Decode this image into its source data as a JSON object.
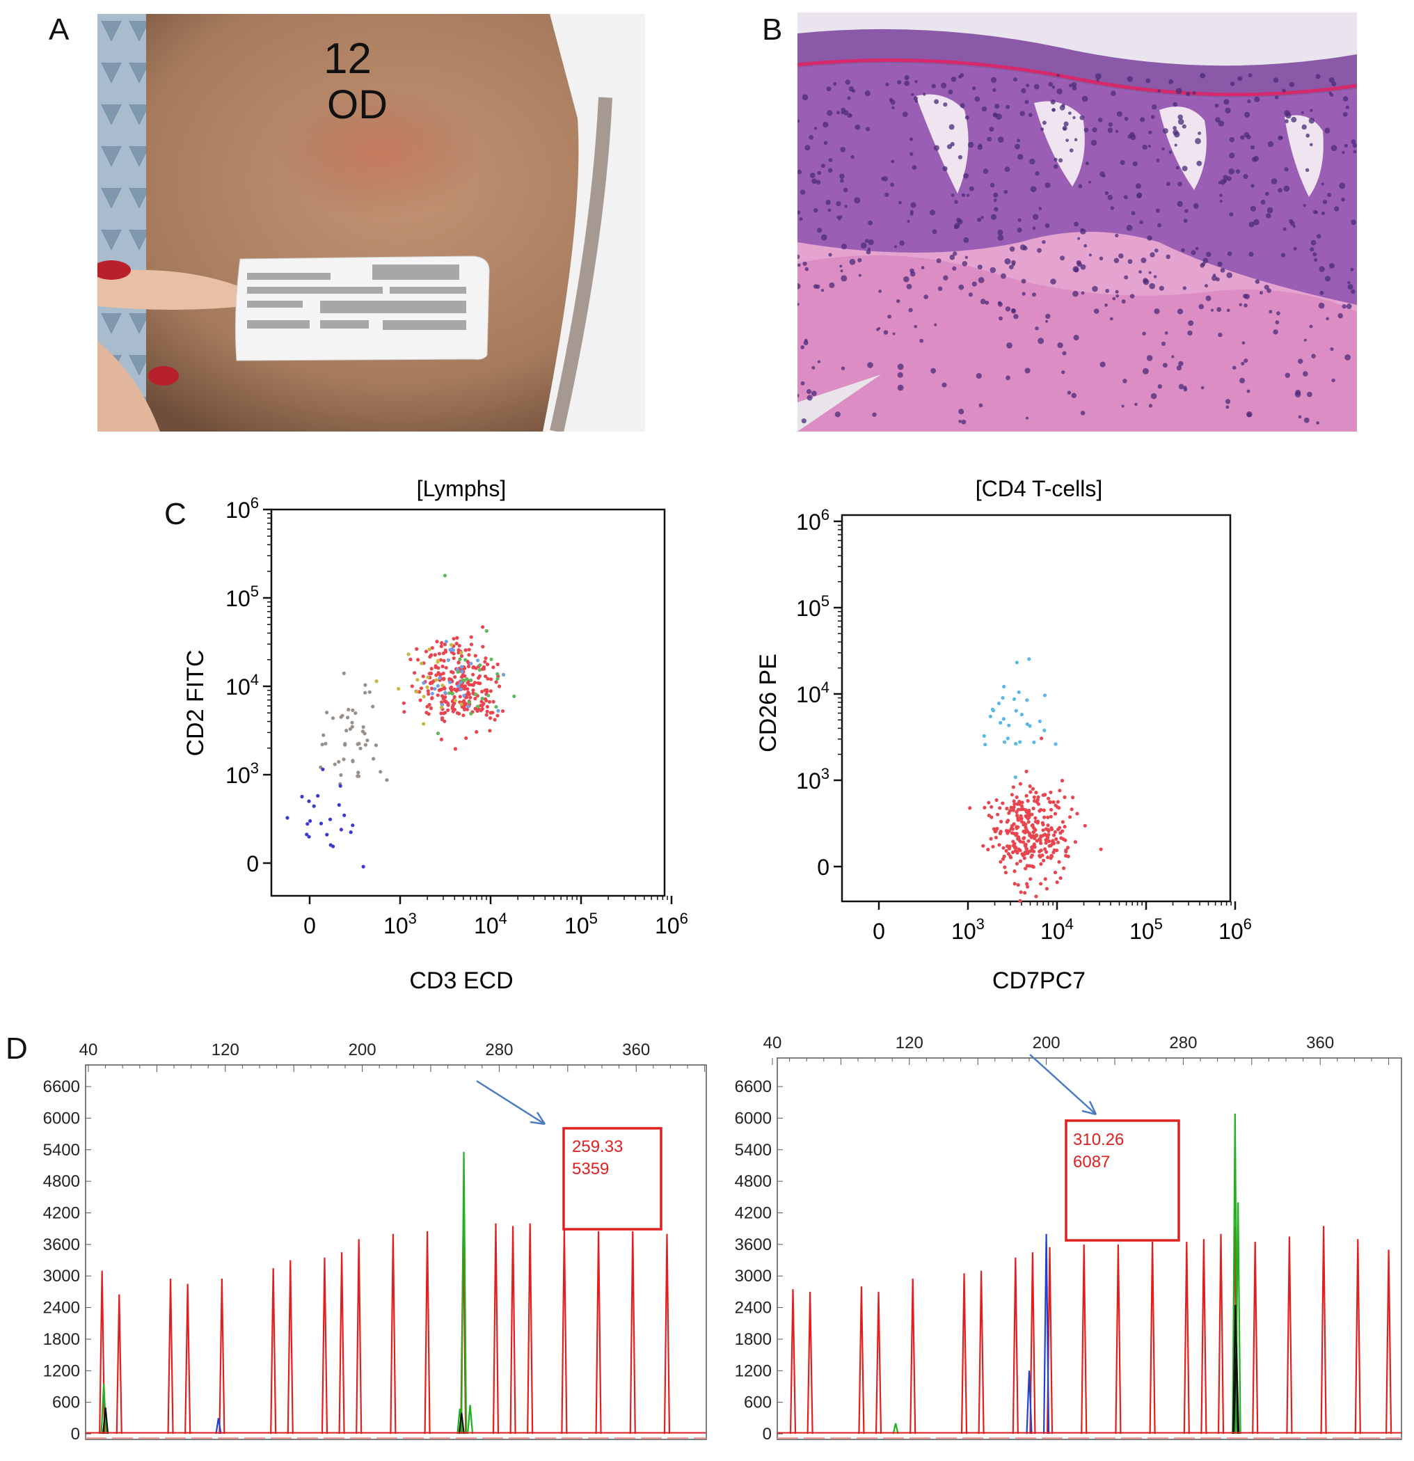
{
  "figure": {
    "panel_labels": [
      "A",
      "B",
      "C",
      "D"
    ],
    "photo_a": {
      "skin_marking_line1": "12",
      "skin_marking_line2": "OD",
      "colors": {
        "skin": "#b58a6a",
        "lesion": "#c07060",
        "gown": "#9fb3c6",
        "label": "#f2f2f2"
      }
    },
    "photo_b": {
      "colors": {
        "tissue": "#c58ac6",
        "nuclei": "#4b2b7a",
        "dermis": "#e6a6d0",
        "background": "#e8e4ea"
      }
    }
  },
  "chart_data": [
    {
      "type": "scatter",
      "title": "[Lymphs]",
      "xlabel": "CD3 ECD",
      "ylabel": "CD2 FITC",
      "x_ticks": [
        "0",
        "10^3",
        "10^4",
        "10^5",
        "10^6"
      ],
      "y_ticks": [
        "0",
        "10^3",
        "10^4",
        "10^5",
        "10^6"
      ],
      "scale": "biexponential",
      "clusters": [
        {
          "color": "#e8454f",
          "x_center": 4500,
          "y_center": 10000,
          "count": 260
        },
        {
          "color": "#6fa0e8",
          "x_center": 4500,
          "y_center": 14000,
          "count": 25
        },
        {
          "color": "#5fb85a",
          "x_center": 6000,
          "y_center": 9000,
          "count": 25
        },
        {
          "color": "#c8b840",
          "x_center": 2500,
          "y_center": 12000,
          "count": 20
        },
        {
          "color": "#9a8f88",
          "x_center": 500,
          "y_center": 3000,
          "count": 45
        },
        {
          "color": "#3a3ad0",
          "x_center": 250,
          "y_center": 600,
          "count": 22
        }
      ]
    },
    {
      "type": "scatter",
      "title": "[CD4 T-cells]",
      "xlabel": "CD7PC7",
      "ylabel": "CD26 PE",
      "x_ticks": [
        "0",
        "10^3",
        "10^4",
        "10^5",
        "10^6"
      ],
      "y_ticks": [
        "0",
        "10^3",
        "10^4",
        "10^5",
        "10^6"
      ],
      "scale": "biexponential",
      "clusters": [
        {
          "color": "#e8454f",
          "x_center": 5000,
          "y_center": 400,
          "count": 300
        },
        {
          "color": "#5ab8e8",
          "x_center": 3500,
          "y_center": 5000,
          "count": 30
        }
      ]
    },
    {
      "type": "line",
      "xlim": [
        40,
        400
      ],
      "ylim": [
        0,
        7000
      ],
      "x_ticks": [
        40,
        120,
        200,
        280,
        360
      ],
      "y_ticks": [
        0,
        600,
        1200,
        1800,
        2400,
        3000,
        3600,
        4200,
        4800,
        5400,
        6000,
        6600
      ],
      "annotation": {
        "line1": "259.33",
        "line2": "5359"
      },
      "series": [
        {
          "color": "#e02020",
          "peaks": [
            [
              48,
              3100
            ],
            [
              58,
              2650
            ],
            [
              88,
              2950
            ],
            [
              98,
              2850
            ],
            [
              118,
              2950
            ],
            [
              148,
              3150
            ],
            [
              158,
              3300
            ],
            [
              178,
              3350
            ],
            [
              188,
              3450
            ],
            [
              198,
              3700
            ],
            [
              218,
              3800
            ],
            [
              238,
              3850
            ],
            [
              259,
              3950
            ],
            [
              278,
              4000
            ],
            [
              288,
              3950
            ],
            [
              298,
              4000
            ],
            [
              318,
              3900
            ],
            [
              338,
              3850
            ],
            [
              358,
              3850
            ],
            [
              378,
              3800
            ]
          ]
        },
        {
          "color": "#20b020",
          "peaks": [
            [
              49,
              950
            ],
            [
              259.33,
              5359
            ],
            [
              257,
              480
            ],
            [
              263,
              550
            ]
          ]
        },
        {
          "color": "#2040d0",
          "peaks": [
            [
              116,
              300
            ]
          ]
        },
        {
          "color": "#111111",
          "peaks": [
            [
              50,
              500
            ],
            [
              258,
              400
            ]
          ]
        }
      ]
    },
    {
      "type": "line",
      "xlim": [
        40,
        400
      ],
      "ylim": [
        0,
        7000
      ],
      "x_ticks": [
        40,
        120,
        200,
        280,
        360
      ],
      "y_ticks": [
        0,
        600,
        1200,
        1800,
        2400,
        3000,
        3600,
        4200,
        4800,
        5400,
        6000,
        6600
      ],
      "annotation": {
        "line1": "310.26",
        "line2": "6087"
      },
      "series": [
        {
          "color": "#e02020",
          "peaks": [
            [
              52,
              2750
            ],
            [
              62,
              2700
            ],
            [
              92,
              2800
            ],
            [
              102,
              2700
            ],
            [
              122,
              2950
            ],
            [
              152,
              3050
            ],
            [
              162,
              3100
            ],
            [
              182,
              3350
            ],
            [
              192,
              3450
            ],
            [
              202,
              3550
            ],
            [
              222,
              3600
            ],
            [
              242,
              3600
            ],
            [
              262,
              3650
            ],
            [
              282,
              3650
            ],
            [
              292,
              3700
            ],
            [
              302,
              3800
            ],
            [
              310.26,
              3950
            ],
            [
              322,
              3650
            ],
            [
              342,
              3750
            ],
            [
              362,
              3950
            ],
            [
              382,
              3700
            ],
            [
              400,
              3500
            ]
          ]
        },
        {
          "color": "#20b020",
          "peaks": [
            [
              310.26,
              6087
            ],
            [
              312,
              4400
            ],
            [
              112,
              200
            ]
          ]
        },
        {
          "color": "#2040d0",
          "peaks": [
            [
              190,
              1200
            ],
            [
              200,
              3800
            ]
          ]
        },
        {
          "color": "#111111",
          "peaks": [
            [
              310.5,
              2450
            ],
            [
              311,
              1700
            ]
          ]
        }
      ]
    }
  ]
}
